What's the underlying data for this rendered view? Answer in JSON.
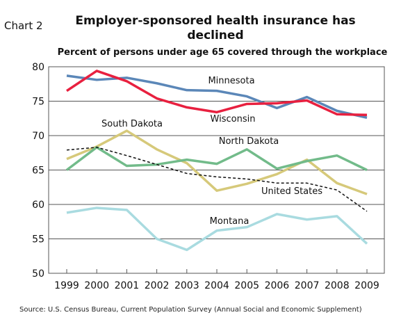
{
  "chart_label": "Chart 2",
  "chart_data": {
    "type": "line",
    "title": "Employer-sponsored health insurance has declined",
    "subtitle": "Percent of persons under age 65 covered through the workplace",
    "xlabel": "",
    "ylabel": "",
    "x": [
      1999,
      2000,
      2001,
      2002,
      2003,
      2004,
      2005,
      2006,
      2007,
      2008,
      2009
    ],
    "ylim": [
      50,
      80
    ],
    "yticks": [
      50,
      55,
      60,
      65,
      70,
      75,
      80
    ],
    "grid": true,
    "series": [
      {
        "name": "Minnesota",
        "color": "#5b87b8",
        "dashed": false,
        "values": [
          78.7,
          78.1,
          78.4,
          77.6,
          76.6,
          76.5,
          75.7,
          74.0,
          75.6,
          73.6,
          72.6
        ]
      },
      {
        "name": "Wisconsin",
        "color": "#e8203f",
        "dashed": false,
        "values": [
          76.5,
          79.4,
          77.9,
          75.4,
          74.1,
          73.4,
          74.6,
          74.7,
          75.1,
          73.1,
          73.0
        ]
      },
      {
        "name": "South Dakota",
        "color": "#d6c97a",
        "dashed": false,
        "values": [
          66.6,
          68.4,
          70.7,
          68.0,
          66.0,
          62.0,
          63.0,
          64.4,
          66.5,
          63.1,
          61.5
        ]
      },
      {
        "name": "North Dakota",
        "color": "#72bb8a",
        "dashed": false,
        "values": [
          65.0,
          68.3,
          65.6,
          65.8,
          66.5,
          65.9,
          68.0,
          65.2,
          66.3,
          67.1,
          65.0
        ]
      },
      {
        "name": "United States",
        "color": "#111111",
        "dashed": true,
        "values": [
          67.9,
          68.3,
          67.1,
          65.8,
          64.5,
          64.0,
          63.7,
          63.1,
          63.1,
          62.1,
          59.0
        ]
      },
      {
        "name": "Montana",
        "color": "#a9dbe0",
        "dashed": false,
        "values": [
          58.8,
          59.5,
          59.2,
          55.0,
          53.4,
          56.2,
          56.7,
          58.6,
          57.8,
          58.3,
          54.3
        ]
      }
    ]
  },
  "source": "Source: U.S. Census Bureau, Current Population Survey (Annual Social and Economic Supplement)"
}
